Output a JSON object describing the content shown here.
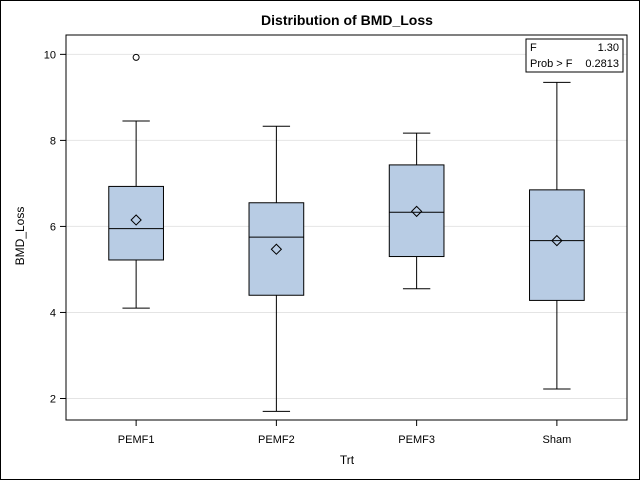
{
  "chart_data": {
    "type": "box",
    "title": "Distribution of BMD_Loss",
    "xlabel": "Trt",
    "ylabel": "BMD_Loss",
    "ylim": [
      1.5,
      10.45
    ],
    "yticks": [
      2,
      4,
      6,
      8,
      10
    ],
    "grid": true,
    "box_fill": "#b8cce4",
    "categories": [
      "PEMF1",
      "PEMF2",
      "PEMF3",
      "Sham"
    ],
    "boxes": [
      {
        "category": "PEMF1",
        "whisker_low": 4.1,
        "q1": 5.22,
        "median": 5.95,
        "mean": 6.15,
        "q3": 6.93,
        "whisker_high": 8.45,
        "outliers": [
          9.93
        ]
      },
      {
        "category": "PEMF2",
        "whisker_low": 1.7,
        "q1": 4.4,
        "median": 5.75,
        "mean": 5.47,
        "q3": 6.55,
        "whisker_high": 8.33,
        "outliers": []
      },
      {
        "category": "PEMF3",
        "whisker_low": 4.55,
        "q1": 5.3,
        "median": 6.33,
        "mean": 6.35,
        "q3": 7.43,
        "whisker_high": 8.17,
        "outliers": []
      },
      {
        "category": "Sham",
        "whisker_low": 2.22,
        "q1": 4.28,
        "median": 5.67,
        "mean": 5.67,
        "q3": 6.85,
        "whisker_high": 9.35,
        "outliers": []
      }
    ],
    "stats_box": {
      "placement": "top-right",
      "rows": [
        {
          "label": "F",
          "value": "1.30"
        },
        {
          "label": "Prob > F",
          "value": "0.2813"
        }
      ]
    }
  }
}
